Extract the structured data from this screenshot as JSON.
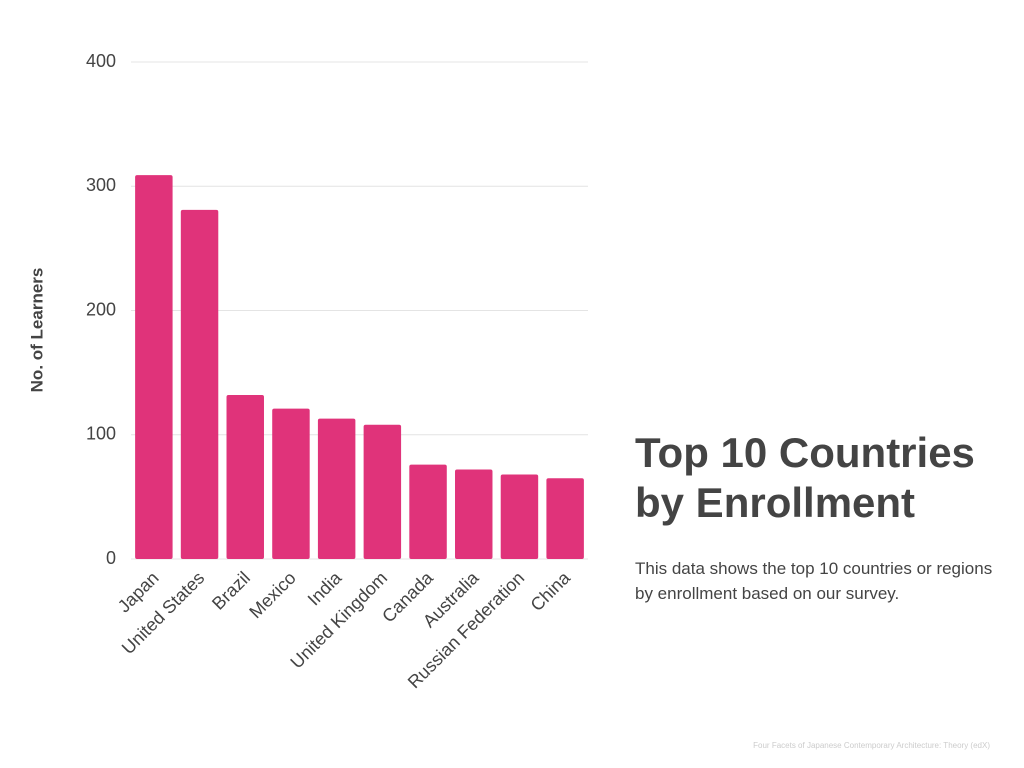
{
  "chart_data": {
    "type": "bar",
    "title": "Top 10 Countries by Enrollment",
    "description": "This data shows the top 10 countries or regions by enrollment based on our survey.",
    "footnote": "Four Facets of Japanese Contemporary Architecture: Theory (edX)",
    "y_label": "No. of Learners",
    "categories": [
      "Japan",
      "United States",
      "Brazil",
      "Mexico",
      "India",
      "United Kingdom",
      "Canada",
      "Australia",
      "Russian Federation",
      "China"
    ],
    "values": [
      309,
      281,
      132,
      121,
      113,
      108,
      76,
      72,
      68,
      65
    ],
    "color": "#e0337a",
    "ylim": [
      0,
      400
    ],
    "yticks": [
      0,
      100,
      200,
      300,
      400
    ],
    "grid": true
  }
}
